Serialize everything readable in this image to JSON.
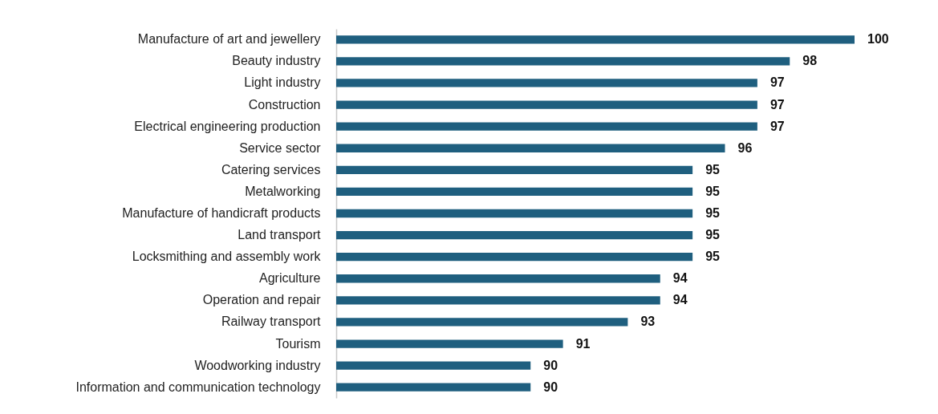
{
  "chart_data": {
    "type": "bar",
    "orientation": "horizontal",
    "categories": [
      "Manufacture of art and jewellery",
      "Beauty industry",
      "Light industry",
      "Construction",
      "Electrical engineering production",
      "Service sector",
      "Catering services",
      "Metalworking",
      "Manufacture of handicraft products",
      "Land transport",
      "Locksmithing and assembly work",
      "Agriculture",
      "Operation and repair",
      "Railway transport",
      "Tourism",
      "Woodworking industry",
      "Information and communication technology"
    ],
    "values": [
      100,
      98,
      97,
      97,
      97,
      96,
      95,
      95,
      95,
      95,
      95,
      94,
      94,
      93,
      91,
      90,
      90
    ],
    "color": "#1f5f7f",
    "data_labels": true,
    "xlim": [
      84,
      100
    ],
    "tick_labels": "y",
    "grid": false,
    "legend": false
  }
}
